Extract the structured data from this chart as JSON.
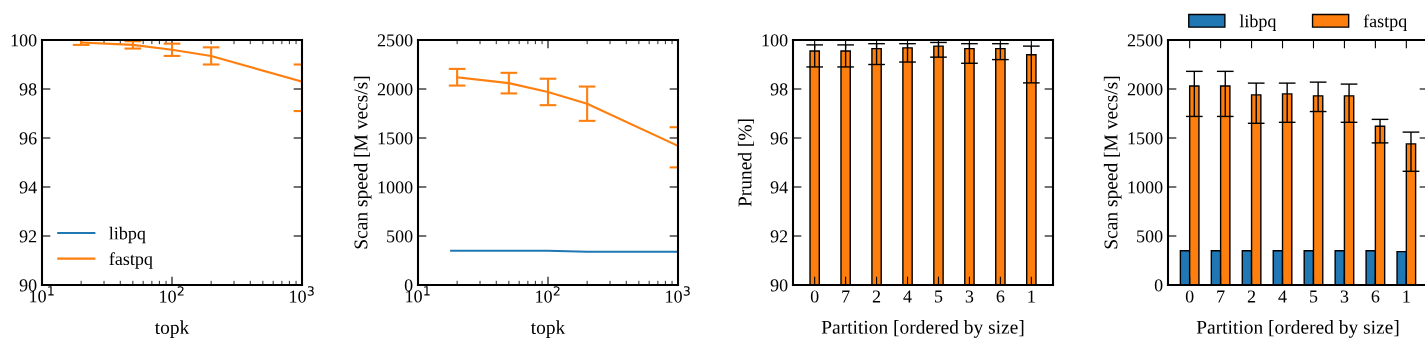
{
  "chart_data": [
    {
      "type": "line",
      "xlabel": "topk",
      "log": "x",
      "xlim": [
        10,
        1000
      ],
      "xticks": [
        {
          "value": 10,
          "label": "10$^{1}$"
        },
        {
          "value": 100,
          "label": "10$^{2}$"
        },
        {
          "value": 1000,
          "label": "10$^{3}$"
        }
      ],
      "ylim": [
        90,
        100
      ],
      "yticks": [
        90,
        92,
        94,
        96,
        98,
        100
      ],
      "legend": "lower left",
      "grid": false,
      "series": [
        {
          "name": "libpq",
          "color": "#1f77b4"
        },
        {
          "name": "fastpq",
          "color": "#ff7f0e",
          "x": [
            20,
            50,
            100,
            200,
            1000
          ],
          "values": [
            99.9,
            99.8,
            99.6,
            99.35,
            98.3
          ],
          "errors": [
            0.1,
            0.15,
            0.25,
            0.35,
            [
              97.1,
              99.0
            ]
          ]
        }
      ]
    },
    {
      "type": "line",
      "xlabel": "topk",
      "ylabel": "Scan speed [M vecs/s]",
      "log": "x",
      "xlim": [
        10,
        1000
      ],
      "xticks": [
        {
          "value": 10,
          "label": "10$^{1}$"
        },
        {
          "value": 100,
          "label": "10$^{2}$"
        },
        {
          "value": 1000,
          "label": "10$^{3}$"
        }
      ],
      "ylim": [
        0,
        2500
      ],
      "yticks": [
        0,
        500,
        1000,
        1500,
        2000,
        2500
      ],
      "grid": false,
      "series": [
        {
          "color": "#1f77b4",
          "x": [
            18,
            50,
            100,
            200,
            1000
          ],
          "values": [
            350,
            350,
            350,
            340,
            340
          ]
        },
        {
          "color": "#ff7f0e",
          "x": [
            20,
            50,
            100,
            200,
            1000
          ],
          "values": [
            2120,
            2060,
            1970,
            1850,
            1420
          ],
          "errors": [
            85,
            105,
            135,
            175,
            [
              1200,
              1610
            ]
          ]
        }
      ]
    },
    {
      "type": "bar",
      "xlabel": "Partition [ordered by size]",
      "ylabel": "Pruned [%]",
      "categories": [
        "0",
        "7",
        "2",
        "4",
        "5",
        "3",
        "6",
        "1"
      ],
      "ylim": [
        90,
        100
      ],
      "yticks": [
        90,
        92,
        94,
        96,
        98,
        100
      ],
      "grid": false,
      "series": [
        {
          "color": "#ff7f0e",
          "values": [
            99.55,
            99.55,
            99.65,
            99.68,
            99.75,
            99.65,
            99.65,
            99.4
          ],
          "errors": [
            [
              98.9,
              99.8
            ],
            [
              98.9,
              99.8
            ],
            [
              99.0,
              99.85
            ],
            [
              99.1,
              99.85
            ],
            [
              99.3,
              99.9
            ],
            [
              99.05,
              99.85
            ],
            [
              99.2,
              99.85
            ],
            [
              98.25,
              99.75
            ]
          ]
        }
      ]
    },
    {
      "type": "bar",
      "xlabel": "Partition [ordered by size]",
      "ylabel": "Scan speed [M vecs/s]",
      "categories": [
        "0",
        "7",
        "2",
        "4",
        "5",
        "3",
        "6",
        "1"
      ],
      "ylim": [
        0,
        2500
      ],
      "yticks": [
        0,
        500,
        1000,
        1500,
        2000,
        2500
      ],
      "legend": "top",
      "grid": false,
      "series": [
        {
          "name": "libpq",
          "color": "#1f77b4",
          "values": [
            350,
            350,
            350,
            350,
            350,
            350,
            350,
            340
          ]
        },
        {
          "name": "fastpq",
          "color": "#ff7f0e",
          "values": [
            2030,
            2030,
            1940,
            1950,
            1930,
            1930,
            1620,
            1440
          ],
          "errors": [
            [
              1720,
              2180
            ],
            [
              1720,
              2180
            ],
            [
              1650,
              2060
            ],
            [
              1660,
              2060
            ],
            [
              1770,
              2070
            ],
            [
              1660,
              2050
            ],
            [
              1450,
              1690
            ],
            [
              1160,
              1560
            ]
          ]
        }
      ]
    }
  ]
}
